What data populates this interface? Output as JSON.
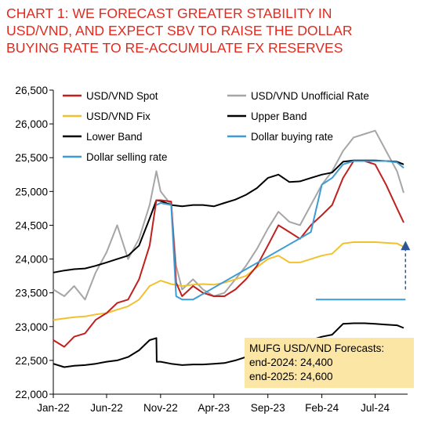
{
  "title_lines": [
    "CHART 1: WE FORECAST GREATER STABILITY IN",
    "USD/VND, AND EXPECT SBV TO RAISE THE DOLLAR",
    "BUYING RATE TO RE-ACCUMULATE FX RESERVES"
  ],
  "forecast_box": {
    "heading": "MUFG USD/VND Forecasts:",
    "lines": [
      "end-2024: 24,400",
      "end-2025: 24,600"
    ]
  },
  "chart_data": {
    "type": "line",
    "x_tick_labels": [
      "Jan-22",
      "Jun-22",
      "Nov-22",
      "Apr-23",
      "Sep-23",
      "Feb-24",
      "Jul-24"
    ],
    "xlim": [
      "2022-01",
      "2024-10"
    ],
    "ylim": [
      22000,
      26500
    ],
    "y_ticks": [
      22000,
      22500,
      23000,
      23500,
      24000,
      24500,
      25000,
      25500,
      26000,
      26500
    ],
    "y_tick_labels": [
      "22,000",
      "22,500",
      "23,000",
      "23,500",
      "24,000",
      "24,500",
      "25,000",
      "25,500",
      "26,000",
      "26,500"
    ],
    "grid": false,
    "legend_position": "top",
    "legend": [
      {
        "label": "USD/VND Spot",
        "color": "#c0201e"
      },
      {
        "label": "USD/VND Unofficial Rate",
        "color": "#a6a6a6"
      },
      {
        "label": "USD/VND Fix",
        "color": "#f2c12e"
      },
      {
        "label": "Upper Band",
        "color": "#000000"
      },
      {
        "label": "Lower Band",
        "color": "#000000"
      },
      {
        "label": "Dollar buying rate",
        "color": "#3e9bd4"
      },
      {
        "label": "Dollar selling rate",
        "color": "#3e9bd4"
      }
    ],
    "series": [
      {
        "key": "spot",
        "color": "#c0201e",
        "points": [
          [
            "2022-01",
            22800
          ],
          [
            "2022-02",
            22700
          ],
          [
            "2022-03",
            22850
          ],
          [
            "2022-04",
            22900
          ],
          [
            "2022-05",
            23100
          ],
          [
            "2022-06",
            23200
          ],
          [
            "2022-07",
            23350
          ],
          [
            "2022-08",
            23400
          ],
          [
            "2022-09",
            23700
          ],
          [
            "2022-10",
            24200
          ],
          [
            "2022-10-20",
            24870
          ],
          [
            "2022-11",
            24870
          ],
          [
            "2022-12",
            24850
          ],
          [
            "2022-12-15",
            23650
          ],
          [
            "2023-01",
            23450
          ],
          [
            "2023-02",
            23600
          ],
          [
            "2023-03",
            23500
          ],
          [
            "2023-04",
            23450
          ],
          [
            "2023-05",
            23450
          ],
          [
            "2023-06",
            23550
          ],
          [
            "2023-07",
            23700
          ],
          [
            "2023-08",
            23900
          ],
          [
            "2023-09",
            24200
          ],
          [
            "2023-10",
            24500
          ],
          [
            "2023-11",
            24400
          ],
          [
            "2023-12",
            24300
          ],
          [
            "2024-01",
            24500
          ],
          [
            "2024-02",
            24650
          ],
          [
            "2024-03",
            24800
          ],
          [
            "2024-04",
            25200
          ],
          [
            "2024-05",
            25450
          ],
          [
            "2024-06",
            25450
          ],
          [
            "2024-07",
            25400
          ],
          [
            "2024-08",
            25100
          ],
          [
            "2024-09",
            24750
          ],
          [
            "2024-09-20",
            24540
          ]
        ]
      },
      {
        "key": "unofficial",
        "color": "#a6a6a6",
        "points": [
          [
            "2022-01",
            23550
          ],
          [
            "2022-02",
            23450
          ],
          [
            "2022-03",
            23600
          ],
          [
            "2022-04",
            23400
          ],
          [
            "2022-05",
            23800
          ],
          [
            "2022-06",
            24100
          ],
          [
            "2022-07",
            24500
          ],
          [
            "2022-08",
            24000
          ],
          [
            "2022-09",
            24300
          ],
          [
            "2022-10",
            24800
          ],
          [
            "2022-10-20",
            25300
          ],
          [
            "2022-11",
            25000
          ],
          [
            "2022-12",
            24800
          ],
          [
            "2022-12-15",
            23900
          ],
          [
            "2023-01",
            23550
          ],
          [
            "2023-02",
            23700
          ],
          [
            "2023-03",
            23550
          ],
          [
            "2023-04",
            23450
          ],
          [
            "2023-05",
            23500
          ],
          [
            "2023-06",
            23700
          ],
          [
            "2023-07",
            23900
          ],
          [
            "2023-08",
            24150
          ],
          [
            "2023-09",
            24450
          ],
          [
            "2023-10",
            24700
          ],
          [
            "2023-11",
            24550
          ],
          [
            "2023-12",
            24500
          ],
          [
            "2024-01",
            24800
          ],
          [
            "2024-02",
            25100
          ],
          [
            "2024-03",
            25300
          ],
          [
            "2024-04",
            25600
          ],
          [
            "2024-05",
            25800
          ],
          [
            "2024-06",
            25850
          ],
          [
            "2024-07",
            25900
          ],
          [
            "2024-08",
            25600
          ],
          [
            "2024-09",
            25300
          ],
          [
            "2024-09-20",
            24980
          ]
        ]
      },
      {
        "key": "fix",
        "color": "#f2c12e",
        "points": [
          [
            "2022-01",
            23100
          ],
          [
            "2022-02",
            23120
          ],
          [
            "2022-03",
            23140
          ],
          [
            "2022-04",
            23150
          ],
          [
            "2022-05",
            23180
          ],
          [
            "2022-06",
            23200
          ],
          [
            "2022-07",
            23250
          ],
          [
            "2022-08",
            23300
          ],
          [
            "2022-09",
            23400
          ],
          [
            "2022-10",
            23600
          ],
          [
            "2022-11",
            23680
          ],
          [
            "2022-12",
            23630
          ],
          [
            "2023-01",
            23600
          ],
          [
            "2023-02",
            23620
          ],
          [
            "2023-03",
            23630
          ],
          [
            "2023-04",
            23620
          ],
          [
            "2023-05",
            23650
          ],
          [
            "2023-06",
            23700
          ],
          [
            "2023-07",
            23750
          ],
          [
            "2023-08",
            23880
          ],
          [
            "2023-09",
            24000
          ],
          [
            "2023-10",
            24050
          ],
          [
            "2023-11",
            23950
          ],
          [
            "2023-12",
            23950
          ],
          [
            "2024-01",
            24000
          ],
          [
            "2024-02",
            24050
          ],
          [
            "2024-03",
            24080
          ],
          [
            "2024-04",
            24230
          ],
          [
            "2024-05",
            24250
          ],
          [
            "2024-06",
            24250
          ],
          [
            "2024-07",
            24250
          ],
          [
            "2024-08",
            24240
          ],
          [
            "2024-09",
            24230
          ],
          [
            "2024-09-20",
            24180
          ]
        ]
      },
      {
        "key": "upper",
        "color": "#000000",
        "points": [
          [
            "2022-01",
            23800
          ],
          [
            "2022-02",
            23830
          ],
          [
            "2022-03",
            23850
          ],
          [
            "2022-04",
            23860
          ],
          [
            "2022-05",
            23900
          ],
          [
            "2022-06",
            23950
          ],
          [
            "2022-07",
            24000
          ],
          [
            "2022-08",
            24050
          ],
          [
            "2022-09",
            24200
          ],
          [
            "2022-10",
            24600
          ],
          [
            "2022-10-20",
            24870
          ],
          [
            "2022-11",
            24860
          ],
          [
            "2022-12",
            24800
          ],
          [
            "2023-01",
            24780
          ],
          [
            "2023-02",
            24800
          ],
          [
            "2023-03",
            24800
          ],
          [
            "2023-04",
            24780
          ],
          [
            "2023-05",
            24830
          ],
          [
            "2023-06",
            24880
          ],
          [
            "2023-07",
            24950
          ],
          [
            "2023-08",
            25050
          ],
          [
            "2023-09",
            25200
          ],
          [
            "2023-10",
            25250
          ],
          [
            "2023-11",
            25140
          ],
          [
            "2023-12",
            25150
          ],
          [
            "2024-01",
            25200
          ],
          [
            "2024-02",
            25250
          ],
          [
            "2024-03",
            25280
          ],
          [
            "2024-04",
            25440
          ],
          [
            "2024-05",
            25460
          ],
          [
            "2024-06",
            25460
          ],
          [
            "2024-07",
            25460
          ],
          [
            "2024-08",
            25450
          ],
          [
            "2024-09",
            25440
          ],
          [
            "2024-09-20",
            25400
          ]
        ]
      },
      {
        "key": "lower",
        "color": "#000000",
        "points": [
          [
            "2022-01",
            22450
          ],
          [
            "2022-02",
            22400
          ],
          [
            "2022-03",
            22420
          ],
          [
            "2022-04",
            22430
          ],
          [
            "2022-05",
            22450
          ],
          [
            "2022-06",
            22480
          ],
          [
            "2022-07",
            22500
          ],
          [
            "2022-08",
            22550
          ],
          [
            "2022-09",
            22650
          ],
          [
            "2022-10",
            22800
          ],
          [
            "2022-10-20",
            22830
          ],
          [
            "2022-10-21",
            22480
          ],
          [
            "2022-11",
            22480
          ],
          [
            "2022-12",
            22450
          ],
          [
            "2023-01",
            22430
          ],
          [
            "2023-02",
            22440
          ],
          [
            "2023-03",
            22440
          ],
          [
            "2023-04",
            22450
          ],
          [
            "2023-05",
            22460
          ],
          [
            "2023-06",
            22500
          ],
          [
            "2023-07",
            22550
          ],
          [
            "2023-08",
            22650
          ],
          [
            "2023-09",
            22750
          ],
          [
            "2023-10",
            22820
          ],
          [
            "2023-11",
            22750
          ],
          [
            "2023-12",
            22760
          ],
          [
            "2024-01",
            22800
          ],
          [
            "2024-02",
            22850
          ],
          [
            "2024-03",
            22880
          ],
          [
            "2024-04",
            23040
          ],
          [
            "2024-05",
            23050
          ],
          [
            "2024-06",
            23050
          ],
          [
            "2024-07",
            23040
          ],
          [
            "2024-08",
            23030
          ],
          [
            "2024-09",
            23020
          ],
          [
            "2024-09-20",
            22980
          ]
        ]
      },
      {
        "key": "buying",
        "color": "#3e9bd4",
        "points": [
          [
            "2022-10-20",
            24800
          ],
          [
            "2022-11",
            24830
          ],
          [
            "2022-12",
            24800
          ],
          [
            "2022-12-15",
            23450
          ],
          [
            "2023-01",
            23400
          ],
          [
            "2023-02",
            23400
          ],
          [
            "2024-01",
            24400
          ],
          [
            "2024-02",
            25100
          ],
          [
            "2024-03",
            25200
          ],
          [
            "2024-04",
            25400
          ],
          [
            "2024-05",
            25450
          ],
          [
            "2024-06",
            25450
          ],
          [
            "2024-07",
            25450
          ],
          [
            "2024-08",
            25450
          ],
          [
            "2024-09",
            25430
          ],
          [
            "2024-09-20",
            25350
          ]
        ]
      },
      {
        "key": "selling",
        "color": "#3e9bd4",
        "points": [
          [
            "2024-01-15",
            23400
          ],
          [
            "2024-09-25",
            23400
          ]
        ]
      }
    ],
    "annotations": [
      {
        "type": "arrow",
        "style": "dashed",
        "color": "#2f5597",
        "from": [
          "2024-09-25",
          23550
        ],
        "to": [
          "2024-09-25",
          24200
        ]
      }
    ]
  }
}
